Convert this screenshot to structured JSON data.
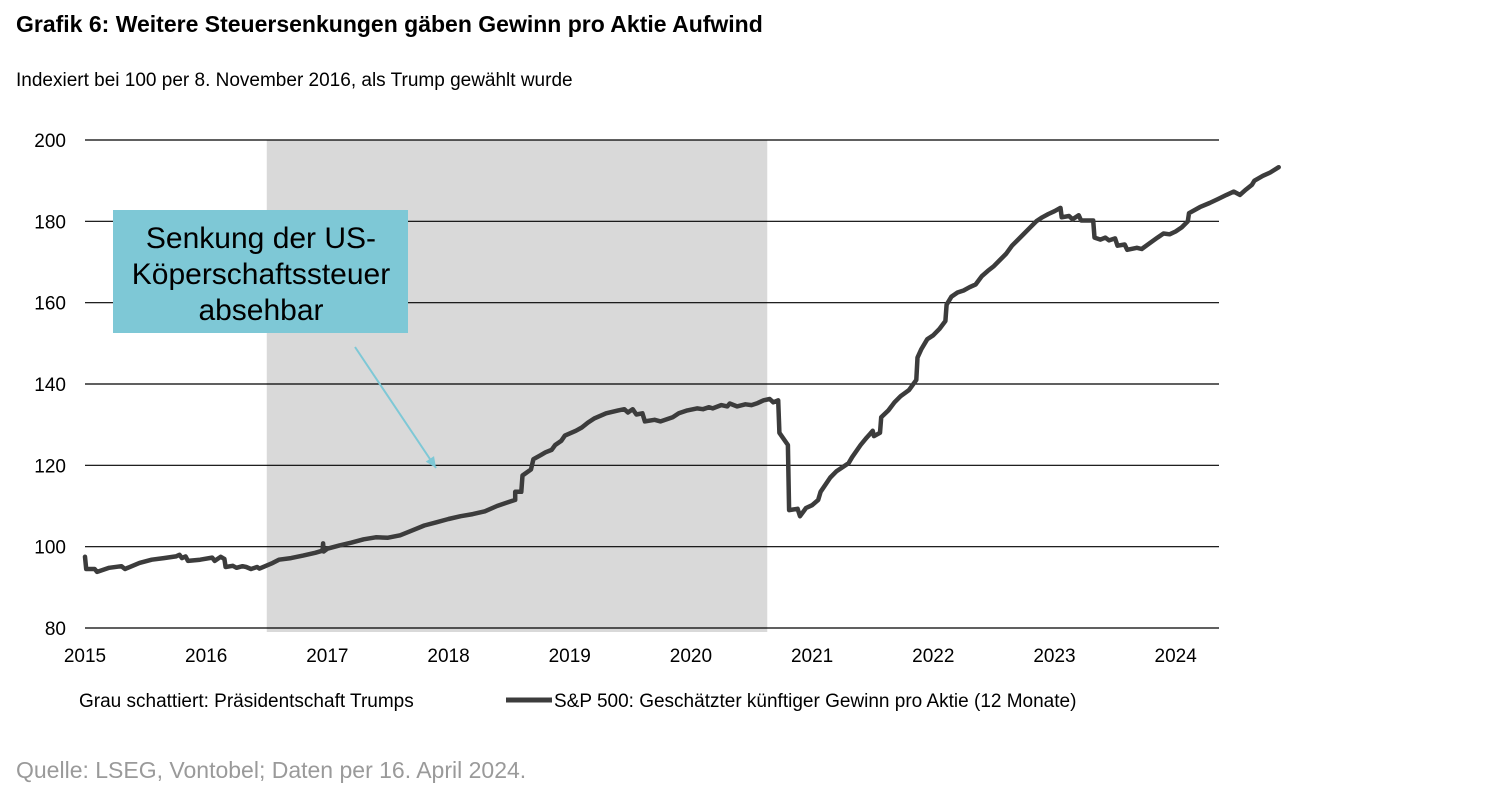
{
  "title": "Grafik 6: Weitere Steuersenkungen gäben Gewinn pro Aktie Aufwind",
  "subtitle": "Indexiert bei 100 per 8. November 2016, als Trump gewählt wurde",
  "source": "Quelle: LSEG, Vontobel; Daten per 16. April 2024.",
  "colors": {
    "line": "#3c3c3c",
    "shade": "#d9d9d9",
    "callout_bg": "#7ec8d6",
    "arrow": "#7ec8d6",
    "grid": "#000000"
  },
  "chart_data": {
    "type": "line",
    "ylim": [
      80,
      200
    ],
    "yticks": [
      200,
      180,
      160,
      140,
      120,
      100,
      80
    ],
    "xlim": [
      2015.0,
      2024.3
    ],
    "xticks": [
      {
        "label": "2015",
        "x": 2015.0
      },
      {
        "label": "2016",
        "x": 2016.0
      },
      {
        "label": "2017",
        "x": 2017.0
      },
      {
        "label": "2018",
        "x": 2018.0
      },
      {
        "label": "2019",
        "x": 2019.0
      },
      {
        "label": "2020",
        "x": 2020.0
      },
      {
        "label": "2021",
        "x": 2021.0
      },
      {
        "label": "2022",
        "x": 2022.0
      },
      {
        "label": "2023",
        "x": 2023.0
      },
      {
        "label": "2024",
        "x": 2024.0
      }
    ],
    "shaded_region": {
      "label": "Grau schattiert: Präsidentschaft Trumps",
      "from": 2016.5,
      "to": 2020.63
    },
    "annotation": {
      "lines": [
        "Senkung der US-",
        "Köperschaftssteuer",
        "absehbar"
      ],
      "target_x": 2017.9,
      "target_y": 118
    },
    "series": [
      {
        "name": "S&P 500: Geschätzter künftiger Gewinn pro Aktie (12 Monate)",
        "points": [
          [
            2015.0,
            97.5
          ],
          [
            2015.01,
            94.5
          ],
          [
            2015.08,
            94.5
          ],
          [
            2015.1,
            93.8
          ],
          [
            2015.2,
            94.8
          ],
          [
            2015.3,
            95.2
          ],
          [
            2015.33,
            94.5
          ],
          [
            2015.45,
            96.0
          ],
          [
            2015.55,
            96.8
          ],
          [
            2015.65,
            97.2
          ],
          [
            2015.75,
            97.6
          ],
          [
            2015.78,
            98.0
          ],
          [
            2015.8,
            97.2
          ],
          [
            2015.83,
            97.6
          ],
          [
            2015.85,
            96.5
          ],
          [
            2015.95,
            96.8
          ],
          [
            2016.05,
            97.3
          ],
          [
            2016.07,
            96.5
          ],
          [
            2016.12,
            97.5
          ],
          [
            2016.15,
            97.0
          ],
          [
            2016.16,
            95.0
          ],
          [
            2016.22,
            95.3
          ],
          [
            2016.25,
            94.8
          ],
          [
            2016.3,
            95.2
          ],
          [
            2016.33,
            95.0
          ],
          [
            2016.37,
            94.5
          ],
          [
            2016.42,
            95.0
          ],
          [
            2016.44,
            94.6
          ],
          [
            2016.55,
            96.0
          ],
          [
            2016.6,
            96.8
          ],
          [
            2016.7,
            97.2
          ],
          [
            2016.8,
            97.8
          ],
          [
            2016.9,
            98.5
          ],
          [
            2016.96,
            99.0
          ],
          [
            2016.965,
            100.8
          ],
          [
            2016.97,
            98.8
          ],
          [
            2017.0,
            99.5
          ],
          [
            2017.1,
            100.3
          ],
          [
            2017.2,
            101.0
          ],
          [
            2017.3,
            101.8
          ],
          [
            2017.4,
            102.3
          ],
          [
            2017.5,
            102.2
          ],
          [
            2017.6,
            102.8
          ],
          [
            2017.7,
            104.0
          ],
          [
            2017.8,
            105.2
          ],
          [
            2017.9,
            106.0
          ],
          [
            2018.0,
            106.8
          ],
          [
            2018.1,
            107.5
          ],
          [
            2018.2,
            108.0
          ],
          [
            2018.3,
            108.7
          ],
          [
            2018.4,
            110.0
          ],
          [
            2018.5,
            111.0
          ],
          [
            2018.55,
            111.5
          ],
          [
            2018.55,
            113.5
          ],
          [
            2018.6,
            113.5
          ],
          [
            2018.61,
            117.5
          ],
          [
            2018.68,
            119.0
          ],
          [
            2018.7,
            121.5
          ],
          [
            2018.76,
            122.5
          ],
          [
            2018.8,
            123.2
          ],
          [
            2018.85,
            123.8
          ],
          [
            2018.88,
            125.0
          ],
          [
            2018.93,
            126.0
          ],
          [
            2018.96,
            127.3
          ],
          [
            2019.05,
            128.5
          ],
          [
            2019.1,
            129.3
          ],
          [
            2019.15,
            130.5
          ],
          [
            2019.2,
            131.5
          ],
          [
            2019.3,
            132.8
          ],
          [
            2019.4,
            133.5
          ],
          [
            2019.45,
            133.8
          ],
          [
            2019.48,
            133.0
          ],
          [
            2019.52,
            133.8
          ],
          [
            2019.55,
            132.5
          ],
          [
            2019.6,
            132.8
          ],
          [
            2019.62,
            130.8
          ],
          [
            2019.7,
            131.2
          ],
          [
            2019.75,
            130.8
          ],
          [
            2019.85,
            131.8
          ],
          [
            2019.9,
            132.8
          ],
          [
            2019.97,
            133.5
          ],
          [
            2020.05,
            134.0
          ],
          [
            2020.1,
            133.8
          ],
          [
            2020.15,
            134.3
          ],
          [
            2020.18,
            134.0
          ],
          [
            2020.25,
            134.8
          ],
          [
            2020.3,
            134.5
          ],
          [
            2020.32,
            135.2
          ],
          [
            2020.38,
            134.5
          ],
          [
            2020.45,
            135.0
          ],
          [
            2020.5,
            134.8
          ],
          [
            2020.55,
            135.3
          ],
          [
            2020.6,
            136.0
          ],
          [
            2020.65,
            136.3
          ],
          [
            2020.68,
            135.5
          ],
          [
            2020.72,
            136.0
          ],
          [
            2020.73,
            128.0
          ],
          [
            2020.8,
            125.0
          ],
          [
            2020.81,
            109.0
          ],
          [
            2020.88,
            109.3
          ],
          [
            2020.9,
            107.5
          ],
          [
            2020.95,
            109.5
          ],
          [
            2021.0,
            110.2
          ],
          [
            2021.05,
            111.5
          ],
          [
            2021.07,
            113.5
          ],
          [
            2021.15,
            117.0
          ],
          [
            2021.2,
            118.5
          ],
          [
            2021.3,
            120.5
          ],
          [
            2021.33,
            122.0
          ],
          [
            2021.4,
            125.0
          ],
          [
            2021.45,
            126.8
          ],
          [
            2021.48,
            127.8
          ],
          [
            2021.5,
            128.5
          ],
          [
            2021.51,
            127.2
          ],
          [
            2021.56,
            128.0
          ],
          [
            2021.57,
            131.8
          ],
          [
            2021.63,
            133.5
          ],
          [
            2021.68,
            135.5
          ],
          [
            2021.73,
            137.0
          ],
          [
            2021.8,
            138.5
          ],
          [
            2021.86,
            141.0
          ],
          [
            2021.87,
            146.5
          ],
          [
            2021.9,
            148.5
          ],
          [
            2021.95,
            151.0
          ],
          [
            2022.0,
            152.0
          ],
          [
            2022.05,
            153.5
          ],
          [
            2022.1,
            155.5
          ],
          [
            2022.11,
            159.5
          ],
          [
            2022.15,
            161.5
          ],
          [
            2022.2,
            162.5
          ],
          [
            2022.25,
            163.0
          ],
          [
            2022.3,
            163.8
          ],
          [
            2022.35,
            164.5
          ],
          [
            2022.4,
            166.5
          ],
          [
            2022.45,
            167.8
          ],
          [
            2022.5,
            169.0
          ],
          [
            2022.55,
            170.5
          ],
          [
            2022.6,
            172.0
          ],
          [
            2022.65,
            174.0
          ],
          [
            2022.7,
            175.5
          ],
          [
            2022.75,
            177.0
          ],
          [
            2022.8,
            178.5
          ],
          [
            2022.85,
            180.0
          ],
          [
            2022.9,
            181.0
          ],
          [
            2022.95,
            181.8
          ],
          [
            2023.0,
            182.5
          ],
          [
            2023.05,
            183.3
          ],
          [
            2023.06,
            181.0
          ],
          [
            2023.12,
            181.3
          ],
          [
            2023.15,
            180.5
          ],
          [
            2023.2,
            181.5
          ],
          [
            2023.22,
            180.2
          ],
          [
            2023.32,
            180.2
          ],
          [
            2023.33,
            176.0
          ],
          [
            2023.38,
            175.5
          ],
          [
            2023.42,
            176.0
          ],
          [
            2023.45,
            175.3
          ],
          [
            2023.5,
            175.8
          ],
          [
            2023.52,
            174.0
          ],
          [
            2023.58,
            174.3
          ],
          [
            2023.6,
            173.0
          ],
          [
            2023.68,
            173.5
          ],
          [
            2023.72,
            173.2
          ],
          [
            2023.78,
            174.5
          ],
          [
            2023.85,
            176.0
          ],
          [
            2023.9,
            177.0
          ],
          [
            2023.95,
            176.8
          ],
          [
            2024.0,
            177.5
          ],
          [
            2024.05,
            178.5
          ],
          [
            2024.1,
            180.0
          ],
          [
            2024.11,
            182.0
          ],
          [
            2024.2,
            183.5
          ],
          [
            2024.28,
            184.5
          ],
          [
            2024.35,
            185.5
          ],
          [
            2024.42,
            186.5
          ],
          [
            2024.48,
            187.3
          ],
          [
            2024.53,
            186.5
          ],
          [
            2024.58,
            187.8
          ],
          [
            2024.63,
            189.0
          ],
          [
            2024.65,
            190.0
          ],
          [
            2024.72,
            191.2
          ],
          [
            2024.78,
            192.0
          ],
          [
            2024.85,
            193.3
          ]
        ]
      }
    ],
    "legend": [
      "Grau schattiert: Präsidentschaft Trumps",
      "S&P 500: Geschätzter künftiger Gewinn pro Aktie (12 Monate)"
    ]
  }
}
